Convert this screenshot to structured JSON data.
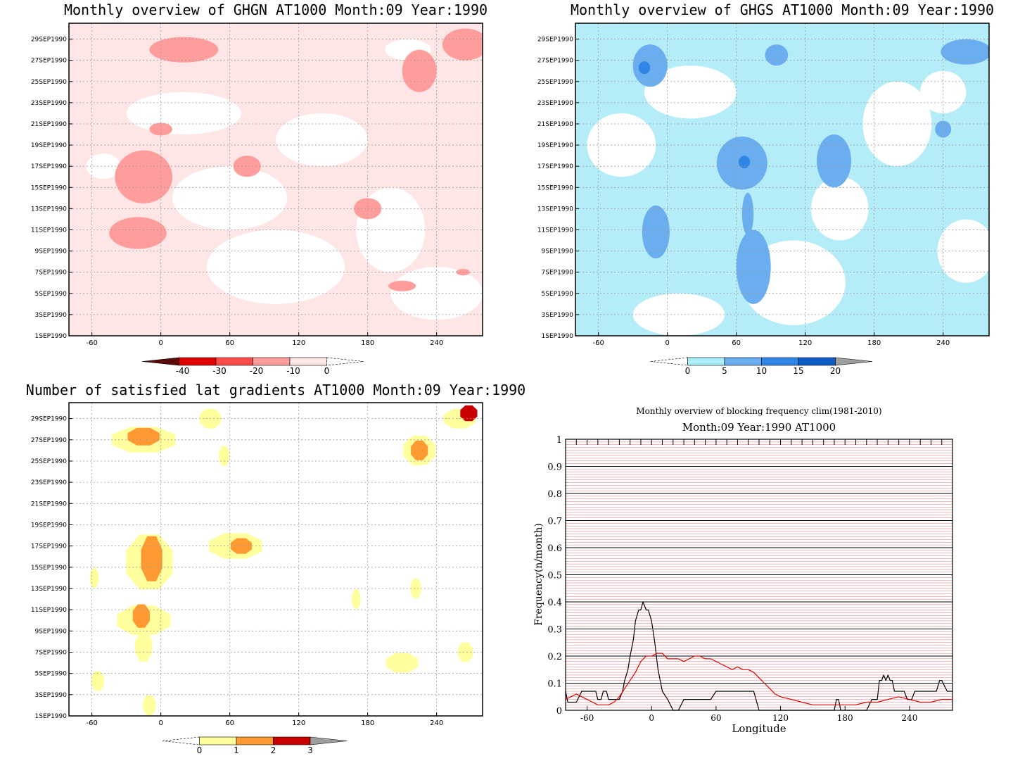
{
  "chart_data": [
    {
      "type": "heatmap",
      "title": "Monthly overview of GHGN AT1000 Month:09 Year:1990",
      "x_ticks": [
        "-60",
        "0",
        "60",
        "120",
        "180",
        "240"
      ],
      "y_ticks": [
        "1SEP1990",
        "3SEP1990",
        "5SEP1990",
        "7SEP1990",
        "9SEP1990",
        "11SEP1990",
        "13SEP1990",
        "15SEP1990",
        "17SEP1990",
        "19SEP1990",
        "21SEP1990",
        "23SEP1990",
        "25SEP1990",
        "27SEP1990",
        "29SEP1990"
      ],
      "xlim": [
        -80,
        280
      ],
      "colorbar": {
        "labels": [
          "-40",
          "-30",
          "-20",
          "-10",
          "0"
        ],
        "colors": [
          "#5a0a0a",
          "#e00000",
          "#ff4a4a",
          "#ff9d9d",
          "#ffe6e6"
        ]
      },
      "background_color": "#ffe6e6",
      "features": [
        {
          "level": 0,
          "kind": "white",
          "lon": 100,
          "day": 7.5,
          "rx": 60,
          "ry": 3.5
        },
        {
          "level": 0,
          "kind": "white",
          "lon": 60,
          "day": 14,
          "rx": 50,
          "ry": 3
        },
        {
          "level": 0,
          "kind": "white",
          "lon": 140,
          "day": 19.5,
          "rx": 40,
          "ry": 2.5
        },
        {
          "level": 0,
          "kind": "white",
          "lon": 20,
          "day": 22,
          "rx": 50,
          "ry": 2
        },
        {
          "level": 0,
          "kind": "white",
          "lon": 200,
          "day": 11,
          "rx": 30,
          "ry": 4
        },
        {
          "level": 0,
          "kind": "white",
          "lon": 240,
          "day": 5,
          "rx": 40,
          "ry": 2.5
        },
        {
          "level": 0,
          "kind": "white",
          "lon": 215,
          "day": 28,
          "rx": 20,
          "ry": 1
        },
        {
          "level": 0,
          "kind": "white",
          "lon": -50,
          "day": 17,
          "rx": 15,
          "ry": 1.2
        },
        {
          "level": 1,
          "kind": "low",
          "lon": 20,
          "day": 28,
          "rx": 30,
          "ry": 1.2
        },
        {
          "level": 1,
          "kind": "low",
          "lon": 225,
          "day": 26,
          "rx": 15,
          "ry": 2
        },
        {
          "level": 1,
          "kind": "low",
          "lon": -15,
          "day": 16,
          "rx": 25,
          "ry": 2.5
        },
        {
          "level": 1,
          "kind": "low",
          "lon": -20,
          "day": 10.7,
          "rx": 25,
          "ry": 1.5
        },
        {
          "level": 1,
          "kind": "low",
          "lon": 75,
          "day": 17,
          "rx": 12,
          "ry": 1
        },
        {
          "level": 1,
          "kind": "low",
          "lon": 180,
          "day": 13,
          "rx": 12,
          "ry": 1
        },
        {
          "level": 1,
          "kind": "low",
          "lon": 210,
          "day": 5.7,
          "rx": 12,
          "ry": 0.5
        },
        {
          "level": 1,
          "kind": "low",
          "lon": 265,
          "day": 28.5,
          "rx": 20,
          "ry": 1.5
        },
        {
          "level": 1,
          "kind": "low",
          "lon": 0,
          "day": 20.5,
          "rx": 10,
          "ry": 0.6
        },
        {
          "level": 1,
          "kind": "low",
          "lon": 263,
          "day": 7,
          "rx": 6,
          "ry": 0.3
        }
      ]
    },
    {
      "type": "heatmap",
      "title": "Monthly overview of GHGS AT1000 Month:09 Year:1990",
      "x_ticks": [
        "-60",
        "0",
        "60",
        "120",
        "180",
        "240"
      ],
      "y_ticks": [
        "1SEP1990",
        "3SEP1990",
        "5SEP1990",
        "7SEP1990",
        "9SEP1990",
        "11SEP1990",
        "13SEP1990",
        "15SEP1990",
        "17SEP1990",
        "19SEP1990",
        "21SEP1990",
        "23SEP1990",
        "25SEP1990",
        "27SEP1990",
        "29SEP1990"
      ],
      "xlim": [
        -80,
        280
      ],
      "colorbar": {
        "labels": [
          "0",
          "5",
          "10",
          "15",
          "20"
        ],
        "colors": [
          "#a9eefa",
          "#6aaef0",
          "#2f86e6",
          "#0f5cc8",
          "#9e9e9e"
        ]
      },
      "background_color": "#b4ecf8",
      "features": [
        {
          "level": 0,
          "kind": "white",
          "lon": -40,
          "day": 19,
          "rx": 30,
          "ry": 3
        },
        {
          "level": 0,
          "kind": "white",
          "lon": 20,
          "day": 24,
          "rx": 40,
          "ry": 2.5
        },
        {
          "level": 0,
          "kind": "white",
          "lon": 110,
          "day": 6,
          "rx": 45,
          "ry": 4
        },
        {
          "level": 0,
          "kind": "white",
          "lon": 150,
          "day": 13,
          "rx": 25,
          "ry": 3
        },
        {
          "level": 0,
          "kind": "white",
          "lon": 200,
          "day": 21,
          "rx": 30,
          "ry": 4
        },
        {
          "level": 0,
          "kind": "white",
          "lon": 260,
          "day": 9,
          "rx": 25,
          "ry": 3
        },
        {
          "level": 0,
          "kind": "white",
          "lon": 10,
          "day": 3,
          "rx": 40,
          "ry": 2
        },
        {
          "level": 0,
          "kind": "white",
          "lon": 240,
          "day": 24,
          "rx": 20,
          "ry": 2
        },
        {
          "level": 1,
          "kind": "low",
          "lon": -15,
          "day": 26.5,
          "rx": 15,
          "ry": 2
        },
        {
          "level": 1,
          "kind": "low",
          "lon": 65,
          "day": 17.3,
          "rx": 22,
          "ry": 2.5
        },
        {
          "level": 1,
          "kind": "low",
          "lon": 75,
          "day": 7.5,
          "rx": 15,
          "ry": 3.5
        },
        {
          "level": 1,
          "kind": "low",
          "lon": -10,
          "day": 10.8,
          "rx": 12,
          "ry": 2.5
        },
        {
          "level": 1,
          "kind": "low",
          "lon": 145,
          "day": 17.5,
          "rx": 15,
          "ry": 2.5
        },
        {
          "level": 1,
          "kind": "low",
          "lon": 95,
          "day": 27.5,
          "rx": 10,
          "ry": 1
        },
        {
          "level": 1,
          "kind": "low",
          "lon": 260,
          "day": 27.8,
          "rx": 22,
          "ry": 1.2
        },
        {
          "level": 1,
          "kind": "low",
          "lon": 240,
          "day": 20.5,
          "rx": 7,
          "ry": 0.8
        },
        {
          "level": 1,
          "kind": "low",
          "lon": 70,
          "day": 12.5,
          "rx": 5,
          "ry": 2
        },
        {
          "level": 2,
          "kind": "low",
          "lon": -20,
          "day": 26.3,
          "rx": 5,
          "ry": 0.6
        },
        {
          "level": 2,
          "kind": "low",
          "lon": 67,
          "day": 17.4,
          "rx": 5,
          "ry": 0.6
        }
      ]
    },
    {
      "type": "heatmap",
      "title": "Number of satisfied lat gradients AT1000 Month:09 Year:1990",
      "x_ticks": [
        "-60",
        "0",
        "60",
        "120",
        "180",
        "240"
      ],
      "y_ticks": [
        "1SEP1990",
        "3SEP1990",
        "5SEP1990",
        "7SEP1990",
        "9SEP1990",
        "11SEP1990",
        "13SEP1990",
        "15SEP1990",
        "17SEP1990",
        "19SEP1990",
        "21SEP1990",
        "23SEP1990",
        "25SEP1990",
        "27SEP1990",
        "29SEP1990"
      ],
      "xlim": [
        -80,
        280
      ],
      "colorbar": {
        "labels": [
          "0",
          "1",
          "2",
          "3"
        ],
        "colors": [
          "#ffff9e",
          "#ff9a33",
          "#c80000",
          "#9e9e9e"
        ]
      },
      "background_color": "#ffffff",
      "features": [
        {
          "level": 1,
          "kind": "block",
          "lon": -10,
          "day": 15.5,
          "rx": 22,
          "ry": 2.8
        },
        {
          "level": 1,
          "kind": "block",
          "lon": -15,
          "day": 10,
          "rx": 25,
          "ry": 1.5
        },
        {
          "level": 1,
          "kind": "block",
          "lon": -15,
          "day": 27,
          "rx": 30,
          "ry": 1.3
        },
        {
          "level": 1,
          "kind": "block",
          "lon": 65,
          "day": 17,
          "rx": 25,
          "ry": 1.3
        },
        {
          "level": 1,
          "kind": "block",
          "lon": 210,
          "day": 6,
          "rx": 15,
          "ry": 1
        },
        {
          "level": 1,
          "kind": "block",
          "lon": 225,
          "day": 26,
          "rx": 15,
          "ry": 1.5
        },
        {
          "level": 1,
          "kind": "block",
          "lon": 260,
          "day": 29,
          "rx": 15,
          "ry": 1
        },
        {
          "level": 1,
          "kind": "block",
          "lon": 265,
          "day": 7,
          "rx": 7,
          "ry": 1
        },
        {
          "level": 1,
          "kind": "block",
          "lon": -55,
          "day": 4.3,
          "rx": 6,
          "ry": 1
        },
        {
          "level": 1,
          "kind": "block",
          "lon": -10,
          "day": 2,
          "rx": 6,
          "ry": 1
        },
        {
          "level": 1,
          "kind": "block",
          "lon": 43,
          "day": 29,
          "rx": 10,
          "ry": 1
        },
        {
          "level": 1,
          "kind": "block",
          "lon": 55,
          "day": 25.5,
          "rx": 5,
          "ry": 1
        },
        {
          "level": 1,
          "kind": "block",
          "lon": 170,
          "day": 12,
          "rx": 4,
          "ry": 1
        },
        {
          "level": 1,
          "kind": "block",
          "lon": 222,
          "day": 13,
          "rx": 5,
          "ry": 1
        },
        {
          "level": 1,
          "kind": "block",
          "lon": -58,
          "day": 14,
          "rx": 4,
          "ry": 1
        },
        {
          "level": 1,
          "kind": "block",
          "lon": -15,
          "day": 7.5,
          "rx": 8,
          "ry": 1.5
        },
        {
          "level": 2,
          "kind": "block",
          "lon": -8,
          "day": 15.8,
          "rx": 10,
          "ry": 2.3
        },
        {
          "level": 2,
          "kind": "block",
          "lon": -17,
          "day": 10.4,
          "rx": 8,
          "ry": 1.2
        },
        {
          "level": 2,
          "kind": "block",
          "lon": -15,
          "day": 27.3,
          "rx": 15,
          "ry": 0.9
        },
        {
          "level": 2,
          "kind": "block",
          "lon": 70,
          "day": 17,
          "rx": 10,
          "ry": 0.8
        },
        {
          "level": 2,
          "kind": "block",
          "lon": 225,
          "day": 26,
          "rx": 8,
          "ry": 1
        },
        {
          "level": 3,
          "kind": "block",
          "lon": 268,
          "day": 29.5,
          "rx": 8,
          "ry": 0.8
        }
      ]
    },
    {
      "type": "line",
      "title": "Monthly overview of blocking frequency clim(1981-2010)",
      "subtitle": "Month:09 Year:1990  AT1000",
      "xlabel": "Longitude",
      "ylabel": "Frequency(n/month)",
      "xlim": [
        -80,
        280
      ],
      "ylim": [
        0,
        1
      ],
      "x_ticks": [
        "-60",
        "0",
        "60",
        "120",
        "180",
        "240"
      ],
      "y_ticks": [
        "0",
        "0.1",
        "0.2",
        "0.3",
        "0.4",
        "0.5",
        "0.6",
        "0.7",
        "0.8",
        "0.9",
        "1"
      ],
      "grid": true,
      "series": [
        {
          "color": "#000000",
          "x": [
            -80,
            -78,
            -75,
            -70,
            -65,
            -60,
            -55,
            -52,
            -50,
            -47,
            -45,
            -42,
            -40,
            -35,
            -30,
            -27,
            -25,
            -22,
            -20,
            -17,
            -15,
            -12,
            -10,
            -8,
            -5,
            -3,
            0,
            3,
            6,
            10,
            15,
            20,
            25,
            30,
            35,
            40,
            45,
            50,
            55,
            60,
            65,
            70,
            75,
            80,
            85,
            90,
            95,
            100,
            105,
            110,
            115,
            120,
            125,
            130,
            135,
            140,
            145,
            150,
            155,
            160,
            165,
            170,
            172,
            174,
            176,
            180,
            185,
            190,
            195,
            200,
            205,
            210,
            212,
            214,
            216,
            218,
            220,
            222,
            224,
            226,
            230,
            235,
            238,
            240,
            242,
            245,
            250,
            255,
            260,
            265,
            268,
            270,
            275,
            280
          ],
          "y": [
            0.07,
            0.03,
            0.03,
            0.03,
            0.07,
            0.07,
            0.07,
            0.07,
            0.04,
            0.04,
            0.07,
            0.07,
            0.04,
            0.04,
            0.04,
            0.07,
            0.11,
            0.15,
            0.2,
            0.26,
            0.33,
            0.37,
            0.37,
            0.4,
            0.37,
            0.37,
            0.33,
            0.25,
            0.15,
            0.07,
            0.04,
            0.0,
            0.0,
            0.04,
            0.04,
            0.04,
            0.04,
            0.04,
            0.04,
            0.07,
            0.07,
            0.07,
            0.07,
            0.07,
            0.07,
            0.07,
            0.07,
            0.0,
            0.0,
            0.0,
            0.0,
            0.0,
            0.0,
            0.0,
            0.0,
            0.0,
            0.0,
            0.0,
            0.0,
            0.0,
            0.0,
            0.0,
            0.04,
            0.04,
            0.0,
            0.0,
            0.0,
            0.0,
            0.0,
            0.0,
            0.04,
            0.04,
            0.11,
            0.11,
            0.13,
            0.11,
            0.13,
            0.11,
            0.11,
            0.07,
            0.07,
            0.07,
            0.04,
            0.04,
            0.04,
            0.07,
            0.07,
            0.07,
            0.07,
            0.07,
            0.11,
            0.11,
            0.07,
            0.07
          ]
        },
        {
          "color": "#e00000",
          "x": [
            -80,
            -75,
            -70,
            -65,
            -60,
            -55,
            -50,
            -45,
            -40,
            -35,
            -30,
            -25,
            -20,
            -15,
            -10,
            -5,
            0,
            5,
            10,
            15,
            20,
            25,
            30,
            35,
            40,
            45,
            50,
            55,
            60,
            65,
            70,
            75,
            80,
            85,
            90,
            95,
            100,
            105,
            110,
            115,
            120,
            130,
            140,
            150,
            160,
            170,
            180,
            190,
            200,
            210,
            220,
            230,
            240,
            250,
            260,
            270,
            280
          ],
          "y": [
            0.04,
            0.05,
            0.06,
            0.05,
            0.04,
            0.03,
            0.02,
            0.02,
            0.02,
            0.03,
            0.05,
            0.08,
            0.11,
            0.14,
            0.18,
            0.2,
            0.2,
            0.21,
            0.21,
            0.19,
            0.19,
            0.19,
            0.18,
            0.19,
            0.2,
            0.2,
            0.19,
            0.19,
            0.18,
            0.17,
            0.16,
            0.15,
            0.16,
            0.15,
            0.15,
            0.14,
            0.12,
            0.1,
            0.08,
            0.06,
            0.05,
            0.04,
            0.03,
            0.02,
            0.02,
            0.02,
            0.02,
            0.02,
            0.03,
            0.03,
            0.04,
            0.05,
            0.04,
            0.03,
            0.03,
            0.04,
            0.04
          ]
        }
      ]
    }
  ]
}
